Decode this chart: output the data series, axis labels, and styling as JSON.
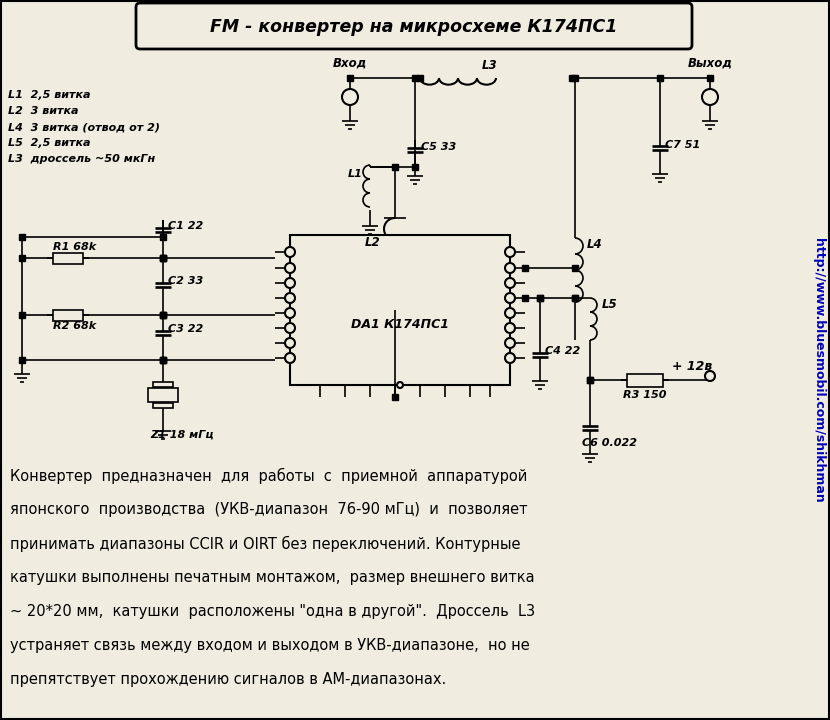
{
  "title": "FM - конвертер на микросхеме К174ПС1",
  "bg_color": "#f0ede0",
  "schematic_color": "#000000",
  "url_color": "#0000bb",
  "url_text": "http://www.bluesmobil.com/shikhman",
  "legend_lines": [
    "L1  2,5 витка",
    "L2  3 витка",
    "L4  3 витка (отвод от 2)",
    "L5  2,5 витка",
    "L3  дроссель ~50 мкГн"
  ],
  "description_lines": [
    "Конвертер  предназначен  для  работы  с  приемной  аппаратурой",
    "японского  производства  (УКВ-диапазон  76-90 мГц)  и  позволяет",
    "принимать диапазоны CCIR и OIRT без переключений. Контурные",
    "катушки выполнены печатным монтажом,  размер внешнего витка",
    "~ 20*20 мм,  катушки  расположены \"одна в другой\".  Дроссель  L3",
    "устраняет связь между входом и выходом в УКВ-диапазоне,  но не",
    "препятствует прохождению сигналов в АМ-диапазонах."
  ]
}
